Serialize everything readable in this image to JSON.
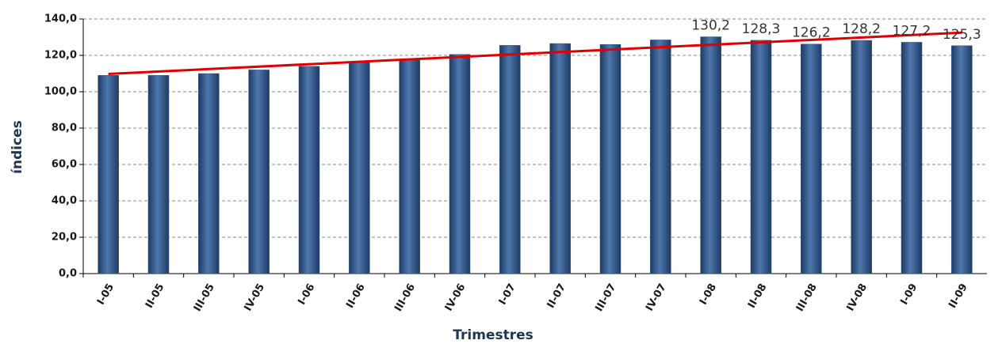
{
  "chart_data": {
    "type": "bar",
    "x_label": "Trimestres",
    "y_label": "índices",
    "categories": [
      "I-05",
      "II-05",
      "III-05",
      "IV-05",
      "I-06",
      "II-06",
      "III-06",
      "IV-06",
      "I-07",
      "II-07",
      "III-07",
      "IV-07",
      "I-08",
      "II-08",
      "III-08",
      "IV-08",
      "I-09",
      "II-09"
    ],
    "values": [
      109,
      109,
      110,
      112,
      114,
      116,
      117.5,
      120.5,
      125.5,
      126.5,
      126,
      128.5,
      130.2,
      128.3,
      126.2,
      128.2,
      127.2,
      125.3
    ],
    "value_labels": [
      null,
      null,
      null,
      null,
      null,
      null,
      null,
      null,
      null,
      null,
      null,
      null,
      "130,2",
      "128,3",
      "126,2",
      "128,2",
      "127,2",
      "125,3"
    ],
    "color": "#2f5689",
    "trend": {
      "color": "#e00000",
      "values": [
        109.8,
        132.5
      ]
    },
    "ylim": [
      0,
      140
    ],
    "yticks": [
      {
        "value": 0,
        "label": "0,0"
      },
      {
        "value": 20,
        "label": "20,0"
      },
      {
        "value": 40,
        "label": "40,0"
      },
      {
        "value": 60,
        "label": "60,0"
      },
      {
        "value": 80,
        "label": "80,0"
      },
      {
        "value": 100,
        "label": "100,0"
      },
      {
        "value": 120,
        "label": "120,0"
      },
      {
        "value": 140,
        "label": "140,0"
      }
    ],
    "grid": true
  }
}
